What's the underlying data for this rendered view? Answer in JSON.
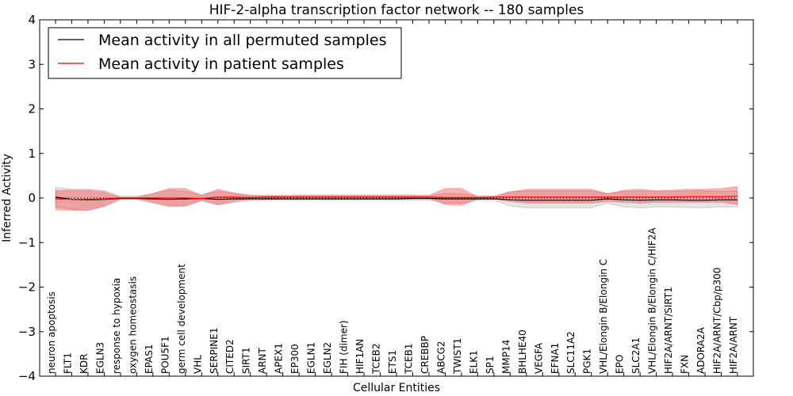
{
  "chart_data": {
    "type": "line",
    "title": "HIF-2-alpha transcription factor network -- 180 samples",
    "xlabel": "Cellular Entities",
    "ylabel": "Inferred Activity",
    "ylim": [
      -4,
      4
    ],
    "yticks": [
      4,
      3,
      2,
      1,
      0,
      -1,
      -2,
      -3,
      -4
    ],
    "ytick_labels": [
      "4",
      "3",
      "2",
      "1",
      "0",
      "−1",
      "−2",
      "−3",
      "−4"
    ],
    "grid": false,
    "legend_position": "top-left",
    "categories": [
      "neuron apoptosis",
      "FLT1",
      "KDR",
      "EGLN3",
      "response to hypoxia",
      "oxygen homeostasis",
      "EPAS1",
      "POU5F1",
      "germ cell development",
      "VHL",
      "SERPINE1",
      "CITED2",
      "SIRT1",
      "ARNT",
      "APEX1",
      "EP300",
      "EGLN1",
      "EGLN2",
      "FIH (dimer)",
      "HIF1AN",
      "TCEB2",
      "ETS1",
      "TCEB1",
      "CREBBP",
      "ABCG2",
      "TWIST1",
      "ELK1",
      "SP1",
      "MMP14",
      "BHLHE40",
      "VEGFA",
      "EFNA1",
      "SLC11A2",
      "PGK1",
      "VHL/Elongin B/Elongin C",
      "EPO",
      "SLC2A1",
      "VHL/Elongin B/Elongin C/HIF2A",
      "HIF2A/ARNT/SIRT1",
      "FXN",
      "ADORA2A",
      "HIF2A/ARNT/Cbp/p300",
      "HIF2A/ARNT"
    ],
    "series": [
      {
        "name": "Mean activity in all permuted samples",
        "color": "#000000",
        "values": [
          0.02,
          -0.03,
          -0.04,
          -0.03,
          -0.01,
          -0.01,
          -0.02,
          -0.03,
          -0.02,
          -0.01,
          -0.03,
          -0.02,
          -0.02,
          -0.02,
          -0.02,
          -0.02,
          -0.02,
          -0.02,
          -0.02,
          -0.02,
          -0.02,
          -0.02,
          -0.01,
          -0.01,
          -0.02,
          -0.02,
          -0.02,
          -0.02,
          -0.04,
          -0.05,
          -0.05,
          -0.05,
          -0.05,
          -0.05,
          -0.02,
          -0.04,
          -0.05,
          -0.04,
          -0.04,
          -0.05,
          -0.05,
          -0.04,
          -0.04
        ],
        "band_low": [
          -0.2,
          -0.25,
          -0.28,
          -0.2,
          -0.04,
          -0.04,
          -0.12,
          -0.2,
          -0.18,
          -0.07,
          -0.16,
          -0.1,
          -0.06,
          -0.05,
          -0.05,
          -0.05,
          -0.05,
          -0.05,
          -0.05,
          -0.05,
          -0.05,
          -0.05,
          -0.05,
          -0.05,
          -0.12,
          -0.12,
          -0.05,
          -0.05,
          -0.18,
          -0.22,
          -0.22,
          -0.22,
          -0.22,
          -0.22,
          -0.12,
          -0.2,
          -0.22,
          -0.2,
          -0.2,
          -0.22,
          -0.22,
          -0.2,
          -0.2
        ],
        "band_high": [
          0.24,
          0.2,
          0.2,
          0.17,
          0.04,
          0.04,
          0.1,
          0.18,
          0.15,
          0.08,
          0.15,
          0.1,
          0.06,
          0.05,
          0.05,
          0.05,
          0.05,
          0.05,
          0.05,
          0.05,
          0.05,
          0.05,
          0.05,
          0.05,
          0.1,
          0.1,
          0.05,
          0.05,
          0.14,
          0.16,
          0.16,
          0.16,
          0.16,
          0.16,
          0.1,
          0.15,
          0.16,
          0.16,
          0.16,
          0.16,
          0.16,
          0.15,
          0.16
        ]
      },
      {
        "name": "Mean activity in patient samples",
        "color": "#ff0000",
        "values": [
          -0.02,
          -0.03,
          -0.03,
          -0.02,
          0.0,
          0.0,
          0.0,
          0.0,
          0.0,
          -0.01,
          0.02,
          0.02,
          0.01,
          0.02,
          0.02,
          0.02,
          0.02,
          0.02,
          0.02,
          0.02,
          0.02,
          0.02,
          0.02,
          0.02,
          0.01,
          0.01,
          0.01,
          0.02,
          0.02,
          0.02,
          0.02,
          0.02,
          0.02,
          0.02,
          0.02,
          0.02,
          0.02,
          0.02,
          0.02,
          0.03,
          0.03,
          0.03,
          0.04
        ],
        "band_low": [
          -0.27,
          -0.28,
          -0.28,
          -0.18,
          -0.02,
          -0.02,
          -0.1,
          -0.18,
          -0.18,
          -0.05,
          -0.15,
          -0.08,
          -0.02,
          -0.01,
          0.0,
          0.0,
          0.0,
          0.0,
          0.0,
          0.0,
          0.0,
          0.0,
          0.0,
          0.0,
          -0.15,
          -0.17,
          -0.02,
          -0.02,
          -0.08,
          -0.12,
          -0.12,
          -0.12,
          -0.12,
          -0.12,
          -0.08,
          -0.1,
          -0.12,
          -0.1,
          -0.1,
          -0.1,
          -0.1,
          -0.1,
          -0.15
        ],
        "band_high": [
          0.17,
          0.18,
          0.18,
          0.14,
          0.02,
          0.02,
          0.1,
          0.22,
          0.22,
          0.06,
          0.2,
          0.12,
          0.06,
          0.06,
          0.06,
          0.07,
          0.07,
          0.07,
          0.07,
          0.07,
          0.07,
          0.07,
          0.07,
          0.06,
          0.22,
          0.22,
          0.03,
          0.03,
          0.14,
          0.2,
          0.2,
          0.2,
          0.2,
          0.2,
          0.1,
          0.18,
          0.2,
          0.16,
          0.18,
          0.2,
          0.2,
          0.22,
          0.26
        ]
      }
    ]
  }
}
